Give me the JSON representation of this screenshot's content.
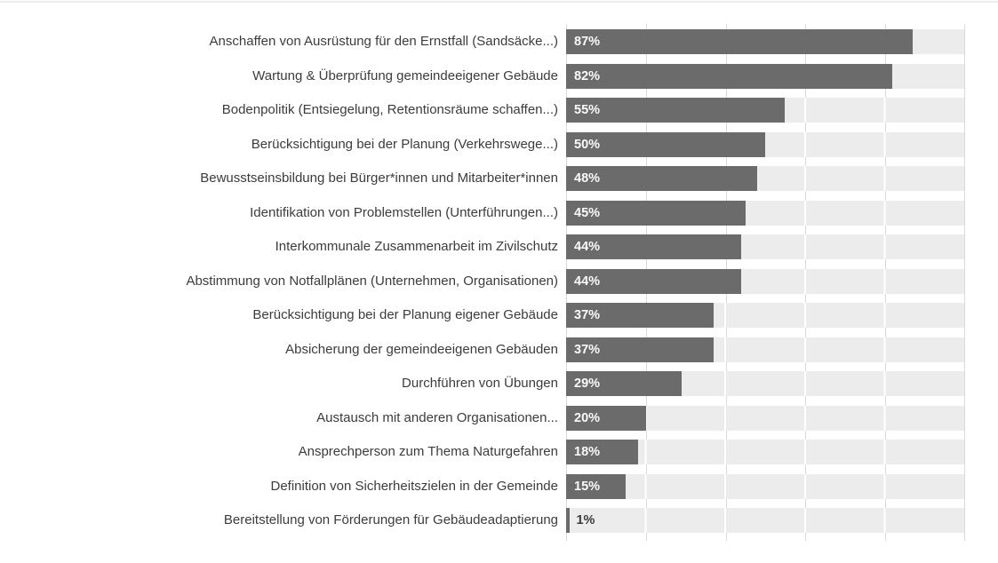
{
  "chart_data": {
    "type": "bar",
    "orientation": "horizontal",
    "title": "",
    "xlabel": "",
    "ylabel": "",
    "xlim": [
      0,
      100
    ],
    "gridline_interval": 20,
    "legend": null,
    "categories": [
      "Anschaffen von Ausrüstung für den Ernstfall (Sandsäcke...)",
      "Wartung & Überprüfung gemeindeeigener Gebäude",
      "Bodenpolitik (Entsiegelung, Retentionsräume schaffen...)",
      "Berücksichtigung bei der Planung (Verkehrswege...)",
      "Bewusstseinsbildung bei Bürger*innen und Mitarbeiter*innen",
      "Identifikation von Problemstellen (Unterführungen...)",
      "Interkommunale Zusammenarbeit im Zivilschutz",
      "Abstimmung von Notfallplänen (Unternehmen, Organisationen)",
      "Berücksichtigung bei der Planung eigener Gebäude",
      "Absicherung der gemeindeeigenen Gebäuden",
      "Durchführen von Übungen",
      "Austausch mit anderen Organisationen...",
      "Ansprechperson zum Thema Naturgefahren",
      "Definition von Sicherheitszielen in der Gemeinde",
      "Bereitstellung von Förderungen für Gebäudeadaptierung"
    ],
    "values": [
      87,
      82,
      55,
      50,
      48,
      45,
      44,
      44,
      37,
      37,
      29,
      20,
      18,
      15,
      1
    ],
    "value_labels": [
      "87%",
      "82%",
      "55%",
      "50%",
      "48%",
      "45%",
      "44%",
      "44%",
      "37%",
      "37%",
      "29%",
      "20%",
      "18%",
      "15%",
      "1%"
    ],
    "colors": {
      "bar": "#6b6b6b",
      "track": "#ececec",
      "gridline_gap": "#d9d9d9",
      "gridline_on_track": "#ffffff",
      "category_label": "#3c3c3c",
      "value_label_inside": "#fafafa",
      "value_label_outside": "#3c3c3c",
      "top_rule": "#ececec",
      "background": "#ffffff"
    }
  }
}
